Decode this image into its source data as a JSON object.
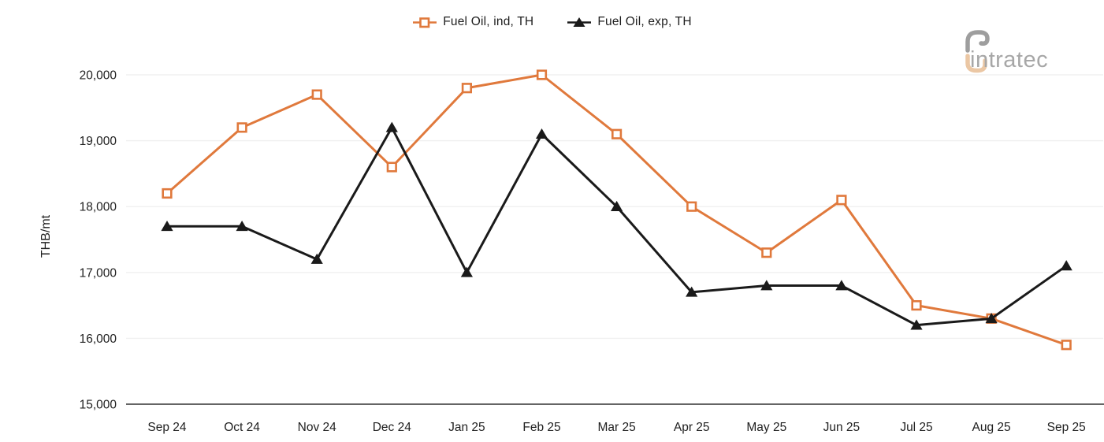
{
  "logo": {
    "text": "intratec",
    "colors": {
      "gray": "#9E9E9E",
      "tan": "#EBC7A4"
    }
  },
  "chart_data": {
    "type": "line",
    "title": "",
    "xlabel": "",
    "ylabel": "THB/mt",
    "x": [
      "Sep 24",
      "Oct 24",
      "Nov 24",
      "Dec 24",
      "Jan 25",
      "Feb 25",
      "Mar 25",
      "Apr 25",
      "May 25",
      "Jun 25",
      "Jul 25",
      "Aug 25",
      "Sep 25"
    ],
    "series": [
      {
        "name": "Fuel Oil, ind, TH",
        "color": "#E0793C",
        "marker": "hollow-square",
        "values": [
          18200,
          19200,
          19700,
          18600,
          19800,
          20000,
          19100,
          18000,
          17300,
          18100,
          16500,
          16300,
          15900
        ]
      },
      {
        "name": "Fuel Oil, exp, TH",
        "color": "#1A1A1A",
        "marker": "filled-triangle",
        "values": [
          17700,
          17700,
          17200,
          19200,
          17000,
          19100,
          18000,
          16700,
          16800,
          16800,
          16200,
          16300,
          17100
        ]
      }
    ],
    "ylim": [
      15000,
      20000
    ],
    "yticks": [
      {
        "value": 15000,
        "label": "15,000"
      },
      {
        "value": 16000,
        "label": "16,000"
      },
      {
        "value": 17000,
        "label": "17,000"
      },
      {
        "value": 18000,
        "label": "18,000"
      },
      {
        "value": 19000,
        "label": "19,000"
      },
      {
        "value": 20000,
        "label": "20,000"
      }
    ],
    "grid": true,
    "legend_position": "top"
  }
}
